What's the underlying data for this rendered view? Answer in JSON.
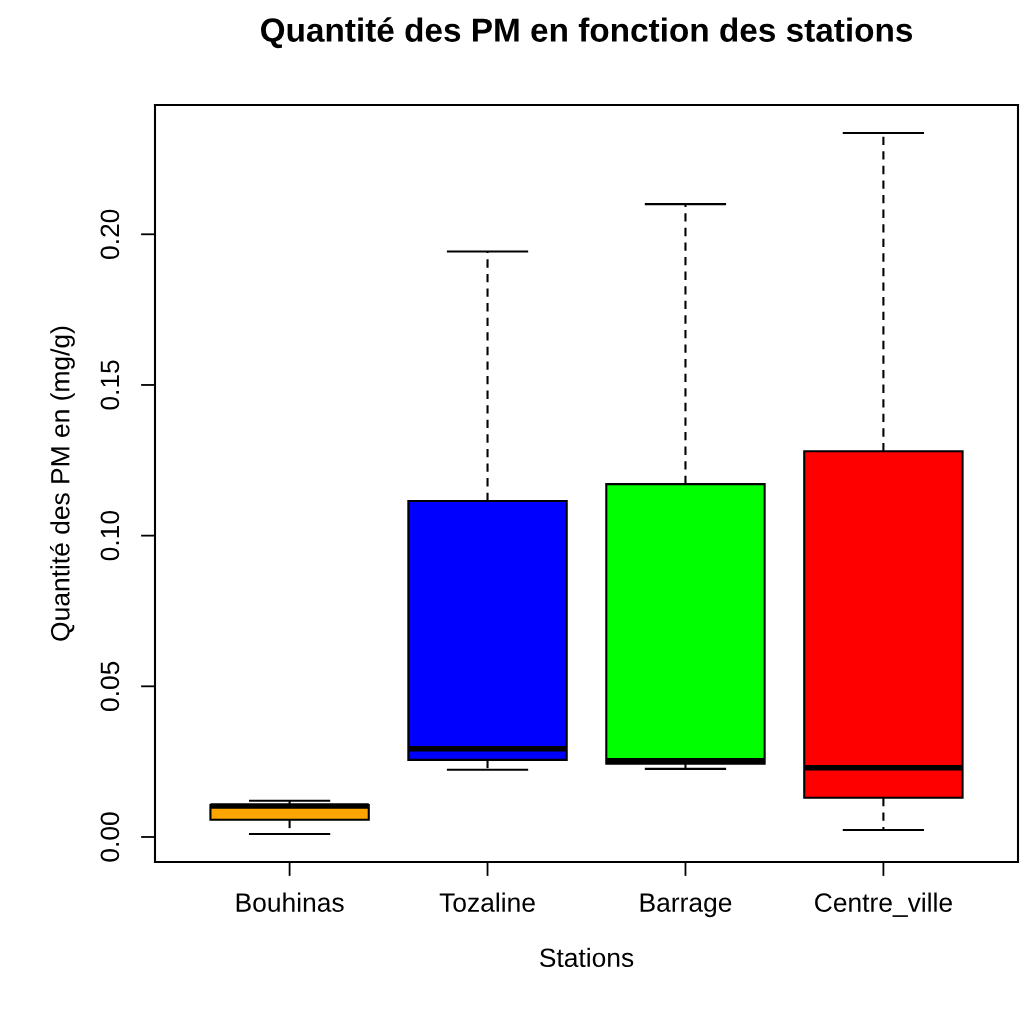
{
  "chart_data": {
    "type": "box",
    "title": "Quantité des PM en fonction des stations",
    "xlabel": "Stations",
    "ylabel": "Quantité des PM en (mg/g)",
    "categories": [
      "Bouhinas",
      "Tozaline",
      "Barrage",
      "Centre_ville"
    ],
    "colors": [
      "#ffa500",
      "#0000ff",
      "#00ff00",
      "#ff0000"
    ],
    "boxes": [
      {
        "low": 0.001,
        "q1": 0.0057,
        "median": 0.0103,
        "q3": 0.0106,
        "high": 0.012
      },
      {
        "low": 0.0223,
        "q1": 0.0256,
        "median": 0.0293,
        "q3": 0.1115,
        "high": 0.1943
      },
      {
        "low": 0.0226,
        "q1": 0.0243,
        "median": 0.0253,
        "q3": 0.1171,
        "high": 0.21
      },
      {
        "low": 0.0023,
        "q1": 0.013,
        "median": 0.023,
        "q3": 0.128,
        "high": 0.2336
      }
    ],
    "ylim": [
      -0.0083,
      0.2429
    ],
    "yticks": [
      {
        "value": 0,
        "label": "0.00"
      },
      {
        "value": 0.05,
        "label": "0.05"
      },
      {
        "value": 0.1,
        "label": "0.10"
      },
      {
        "value": 0.15,
        "label": "0.15"
      },
      {
        "value": 0.2,
        "label": "0.20"
      }
    ],
    "line_style": "dashed",
    "grid": false,
    "legend": false
  }
}
